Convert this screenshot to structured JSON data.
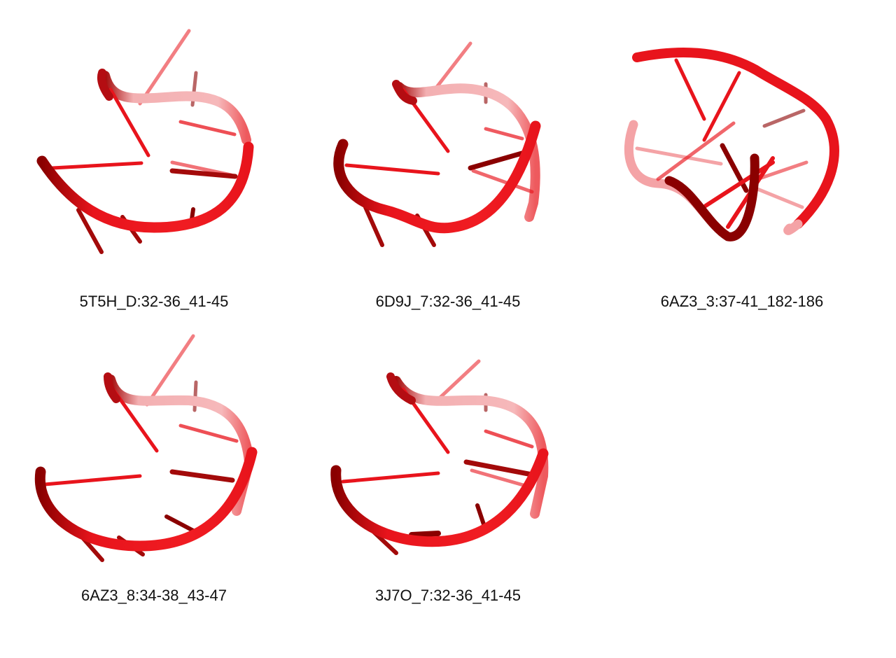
{
  "panels": [
    {
      "label": "5T5H_D:32-36_41-45"
    },
    {
      "label": "6D9J_7:32-36_41-45"
    },
    {
      "label": "6AZ3_3:37-41_182-186"
    },
    {
      "label": "6AZ3_8:34-38_43-47"
    },
    {
      "label": "3J7O_7:32-36_41-45"
    }
  ],
  "colors": {
    "backbone": "#e8141c",
    "backbone_dark": "#8a0000",
    "backbone_faded": "#f4a3a6",
    "base": "#e8141c"
  },
  "structure_type": "rna-backbone-cartoon"
}
